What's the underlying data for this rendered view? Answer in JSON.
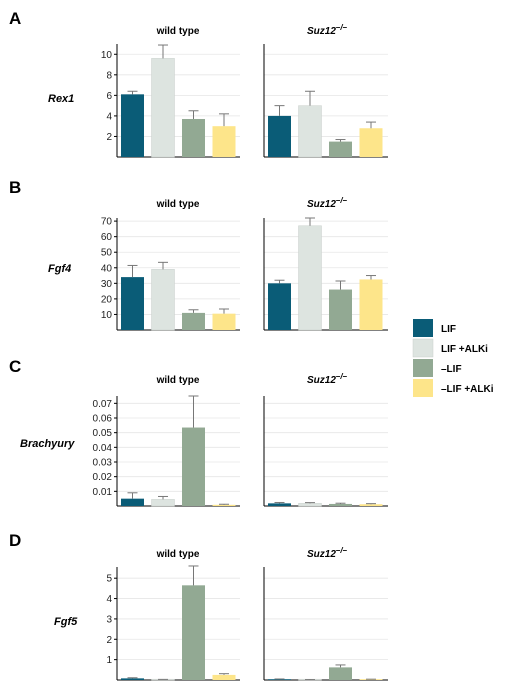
{
  "figure": {
    "colors": {
      "LIF": "#0a5c77",
      "LIF +ALKi": "#dde4e0",
      "–LIF": "#92a993",
      "–LIF +ALKi": "#fde58a"
    },
    "legend": [
      "LIF",
      "LIF +ALKi",
      "–LIF",
      "–LIF +ALKi"
    ]
  },
  "chart_data": [
    {
      "type": "bar",
      "panel": "A",
      "gene": "Rex1",
      "condition": "wild type",
      "categories": [
        "LIF",
        "LIF +ALKi",
        "–LIF",
        "–LIF +ALKi"
      ],
      "values": [
        6.1,
        9.6,
        3.7,
        3.0
      ],
      "errors": [
        0.3,
        1.3,
        0.8,
        1.2
      ],
      "ylim": [
        0,
        11
      ],
      "yticks": [
        2,
        4,
        6,
        8,
        10
      ],
      "ytick_labels": [
        "2",
        "4",
        "6",
        "8",
        "10"
      ]
    },
    {
      "type": "bar",
      "panel": "A",
      "gene": "Rex1",
      "condition": "Suz12–/–",
      "categories": [
        "LIF",
        "LIF +ALKi",
        "–LIF",
        "–LIF +ALKi"
      ],
      "values": [
        4.0,
        5.0,
        1.5,
        2.8
      ],
      "errors": [
        1.0,
        1.4,
        0.2,
        0.6
      ],
      "ylim": [
        0,
        11
      ],
      "yticks": [
        2,
        4,
        6,
        8,
        10
      ],
      "ytick_labels": []
    },
    {
      "type": "bar",
      "panel": "B",
      "gene": "Fgf4",
      "condition": "wild type",
      "categories": [
        "LIF",
        "LIF +ALKi",
        "–LIF",
        "–LIF +ALKi"
      ],
      "values": [
        34,
        39,
        11,
        10.5
      ],
      "errors": [
        7.5,
        4.5,
        2,
        3
      ],
      "ylim": [
        0,
        72
      ],
      "yticks": [
        10,
        20,
        30,
        40,
        50,
        60,
        70
      ],
      "ytick_labels": [
        "10",
        "20",
        "30",
        "40",
        "50",
        "60",
        "70"
      ]
    },
    {
      "type": "bar",
      "panel": "B",
      "gene": "Fgf4",
      "condition": "Suz12–/–",
      "categories": [
        "LIF",
        "LIF +ALKi",
        "–LIF",
        "–LIF +ALKi"
      ],
      "values": [
        30,
        67,
        26,
        32.5
      ],
      "errors": [
        2,
        5,
        5.5,
        2.5
      ],
      "ylim": [
        0,
        72
      ],
      "yticks": [
        10,
        20,
        30,
        40,
        50,
        60,
        70
      ],
      "ytick_labels": []
    },
    {
      "type": "bar",
      "panel": "C",
      "gene": "Brachyury",
      "condition": "wild type",
      "categories": [
        "LIF",
        "LIF +ALKi",
        "–LIF",
        "–LIF +ALKi"
      ],
      "values": [
        0.005,
        0.0045,
        0.0535,
        0.0008
      ],
      "errors": [
        0.004,
        0.002,
        0.0215,
        0.0004
      ],
      "ylim": [
        0,
        0.075
      ],
      "yticks": [
        0.01,
        0.02,
        0.03,
        0.04,
        0.05,
        0.06,
        0.07
      ],
      "ytick_labels": [
        "0.01",
        "0.02",
        "0.03",
        "0.04",
        "0.05",
        "0.06",
        "0.07"
      ]
    },
    {
      "type": "bar",
      "panel": "C",
      "gene": "Brachyury",
      "condition": "Suz12–/–",
      "categories": [
        "LIF",
        "LIF +ALKi",
        "–LIF",
        "–LIF +ALKi"
      ],
      "values": [
        0.0018,
        0.0018,
        0.0014,
        0.0012
      ],
      "errors": [
        0.0006,
        0.0005,
        0.0005,
        0.0004
      ],
      "ylim": [
        0,
        0.075
      ],
      "yticks": [
        0.01,
        0.02,
        0.03,
        0.04,
        0.05,
        0.06,
        0.07
      ],
      "ytick_labels": []
    },
    {
      "type": "bar",
      "panel": "D",
      "gene": "Fgf5",
      "condition": "wild type",
      "categories": [
        "LIF",
        "LIF +ALKi",
        "–LIF",
        "–LIF +ALKi"
      ],
      "values": [
        0.08,
        0.02,
        4.65,
        0.25
      ],
      "errors": [
        0.03,
        0.01,
        0.95,
        0.06
      ],
      "ylim": [
        0,
        5.55
      ],
      "yticks": [
        1,
        2,
        3,
        4,
        5
      ],
      "ytick_labels": [
        "1",
        "2",
        "3",
        "4",
        "5"
      ]
    },
    {
      "type": "bar",
      "panel": "D",
      "gene": "Fgf5",
      "condition": "Suz12–/–",
      "categories": [
        "LIF",
        "LIF +ALKi",
        "–LIF",
        "–LIF +ALKi"
      ],
      "values": [
        0.03,
        0.01,
        0.62,
        0.03
      ],
      "errors": [
        0.02,
        0.01,
        0.12,
        0.01
      ],
      "ylim": [
        0,
        5.55
      ],
      "yticks": [
        1,
        2,
        3,
        4,
        5
      ],
      "ytick_labels": []
    }
  ],
  "panels": [
    {
      "letter": "A",
      "gene": "Rex1",
      "left_title": "wild type",
      "right_title": "Suz12"
    },
    {
      "letter": "B",
      "gene": "Fgf4",
      "left_title": "wild type",
      "right_title": "Suz12"
    },
    {
      "letter": "C",
      "gene": "Brachyury",
      "left_title": "wild type",
      "right_title": "Suz12"
    },
    {
      "letter": "D",
      "gene": "Fgf5",
      "left_title": "wild type",
      "right_title": "Suz12"
    }
  ],
  "genotype_superscript": "–/–"
}
